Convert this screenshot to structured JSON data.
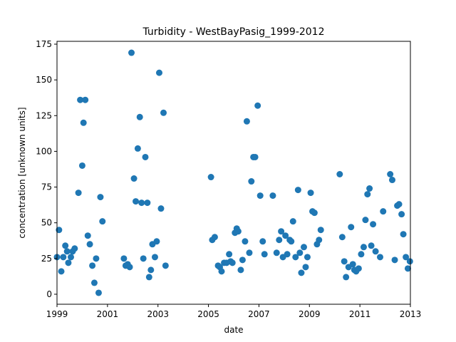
{
  "chart_data": {
    "type": "scatter",
    "title": "Turbidity - WestBayPasig_1999-2012",
    "xlabel": "date",
    "ylabel": "concentration [unknown units]",
    "xlim": [
      1999,
      2013
    ],
    "ylim": [
      -7,
      177
    ],
    "xticks": [
      1999,
      2001,
      2003,
      2005,
      2007,
      2009,
      2011,
      2013
    ],
    "xtick_labels": [
      "1999",
      "2001",
      "2003",
      "2005",
      "2007",
      "2009",
      "2011",
      "2013"
    ],
    "yticks": [
      0,
      25,
      50,
      75,
      100,
      125,
      150,
      175
    ],
    "ytick_labels": [
      "0",
      "25",
      "50",
      "75",
      "100",
      "125",
      "150",
      "175"
    ],
    "grid": false,
    "legend": "none",
    "marker_color": "#1f77b4",
    "series": [
      {
        "points": [
          [
            1999.0,
            26
          ],
          [
            1999.08,
            45
          ],
          [
            1999.17,
            16
          ],
          [
            1999.25,
            26
          ],
          [
            1999.33,
            34
          ],
          [
            1999.4,
            30
          ],
          [
            1999.45,
            22
          ],
          [
            1999.55,
            26
          ],
          [
            1999.62,
            30
          ],
          [
            1999.7,
            32
          ],
          [
            1999.85,
            71
          ],
          [
            1999.92,
            136
          ],
          [
            2000.0,
            90
          ],
          [
            2000.05,
            120
          ],
          [
            2000.12,
            136
          ],
          [
            2000.22,
            41
          ],
          [
            2000.3,
            35
          ],
          [
            2000.4,
            20
          ],
          [
            2000.48,
            8
          ],
          [
            2000.55,
            25
          ],
          [
            2000.65,
            1
          ],
          [
            2000.72,
            68
          ],
          [
            2000.8,
            51
          ],
          [
            2001.65,
            25
          ],
          [
            2001.72,
            20
          ],
          [
            2001.8,
            21
          ],
          [
            2001.88,
            19
          ],
          [
            2001.95,
            169
          ],
          [
            2002.05,
            81
          ],
          [
            2002.12,
            65
          ],
          [
            2002.2,
            102
          ],
          [
            2002.28,
            124
          ],
          [
            2002.35,
            64
          ],
          [
            2002.42,
            25
          ],
          [
            2002.5,
            96
          ],
          [
            2002.58,
            64
          ],
          [
            2002.65,
            12
          ],
          [
            2002.72,
            17
          ],
          [
            2002.78,
            35
          ],
          [
            2002.88,
            26
          ],
          [
            2002.95,
            37
          ],
          [
            2003.05,
            155
          ],
          [
            2003.12,
            60
          ],
          [
            2003.22,
            127
          ],
          [
            2003.3,
            20
          ],
          [
            2005.1,
            82
          ],
          [
            2005.15,
            38
          ],
          [
            2005.25,
            40
          ],
          [
            2005.38,
            20
          ],
          [
            2005.45,
            19
          ],
          [
            2005.52,
            16
          ],
          [
            2005.62,
            22
          ],
          [
            2005.72,
            22
          ],
          [
            2005.82,
            28
          ],
          [
            2005.88,
            23
          ],
          [
            2005.95,
            22
          ],
          [
            2006.05,
            43
          ],
          [
            2006.12,
            46
          ],
          [
            2006.18,
            44
          ],
          [
            2006.28,
            17
          ],
          [
            2006.35,
            24
          ],
          [
            2006.45,
            37
          ],
          [
            2006.52,
            121
          ],
          [
            2006.62,
            29
          ],
          [
            2006.7,
            79
          ],
          [
            2006.78,
            96
          ],
          [
            2006.85,
            96
          ],
          [
            2006.95,
            132
          ],
          [
            2007.05,
            69
          ],
          [
            2007.15,
            37
          ],
          [
            2007.22,
            28
          ],
          [
            2007.55,
            69
          ],
          [
            2007.7,
            29
          ],
          [
            2007.8,
            38
          ],
          [
            2007.88,
            44
          ],
          [
            2007.95,
            26
          ],
          [
            2008.05,
            41
          ],
          [
            2008.12,
            28
          ],
          [
            2008.22,
            38
          ],
          [
            2008.28,
            37
          ],
          [
            2008.35,
            51
          ],
          [
            2008.45,
            26
          ],
          [
            2008.55,
            73
          ],
          [
            2008.62,
            29
          ],
          [
            2008.68,
            15
          ],
          [
            2008.78,
            33
          ],
          [
            2008.85,
            19
          ],
          [
            2008.92,
            26
          ],
          [
            2009.05,
            71
          ],
          [
            2009.12,
            58
          ],
          [
            2009.2,
            57
          ],
          [
            2009.3,
            35
          ],
          [
            2009.38,
            38
          ],
          [
            2009.45,
            45
          ],
          [
            2010.2,
            84
          ],
          [
            2010.3,
            40
          ],
          [
            2010.38,
            23
          ],
          [
            2010.45,
            12
          ],
          [
            2010.55,
            19
          ],
          [
            2010.65,
            47
          ],
          [
            2010.72,
            21
          ],
          [
            2010.78,
            17
          ],
          [
            2010.85,
            16
          ],
          [
            2010.95,
            18
          ],
          [
            2011.05,
            28
          ],
          [
            2011.15,
            33
          ],
          [
            2011.22,
            52
          ],
          [
            2011.3,
            70
          ],
          [
            2011.38,
            74
          ],
          [
            2011.45,
            34
          ],
          [
            2011.52,
            49
          ],
          [
            2011.62,
            30
          ],
          [
            2011.8,
            26
          ],
          [
            2011.92,
            58
          ],
          [
            2012.2,
            84
          ],
          [
            2012.28,
            80
          ],
          [
            2012.38,
            24
          ],
          [
            2012.48,
            62
          ],
          [
            2012.55,
            63
          ],
          [
            2012.65,
            56
          ],
          [
            2012.72,
            42
          ],
          [
            2012.82,
            26
          ],
          [
            2012.9,
            18
          ],
          [
            2012.98,
            23
          ]
        ]
      }
    ]
  }
}
